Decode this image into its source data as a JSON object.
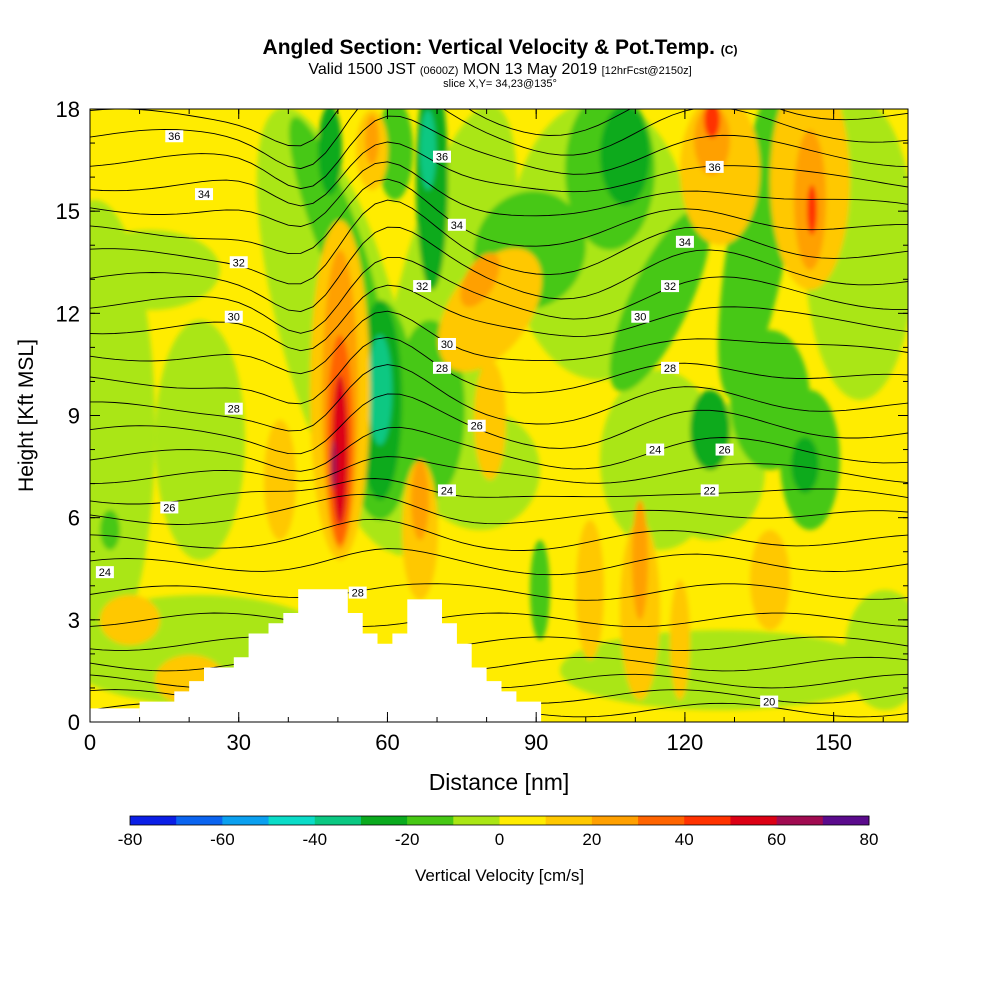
{
  "header": {
    "title": "Angled Section: Vertical Velocity & Pot.Temp.",
    "title_mark": "(C)",
    "valid_prefix": "Valid 1500 JST",
    "valid_utc": "(0600Z)",
    "valid_date": "MON 13 May 2019",
    "forecast": "[12hrFcst@2150z]",
    "slice": "slice X,Y= 34,23@135°"
  },
  "colorbar": {
    "label": "Vertical Velocity [cm/s]",
    "ticks": [
      "-80",
      "-60",
      "-40",
      "-20",
      "0",
      "20",
      "40",
      "60",
      "80"
    ],
    "colors": [
      "#0a1ee6",
      "#0a64f0",
      "#0aa0f0",
      "#0adcc8",
      "#0ac882",
      "#0aaa1e",
      "#46c814",
      "#aae614",
      "#ffec00",
      "#ffc800",
      "#ffa000",
      "#ff6400",
      "#ff3200",
      "#dc0014",
      "#a00a50",
      "#5a0a8c"
    ]
  },
  "chart_data": {
    "type": "heatmap",
    "xlabel": "Distance [nm]",
    "ylabel": "Height [Kft MSL]",
    "xlim": [
      0,
      165
    ],
    "ylim": [
      0,
      18
    ],
    "xticks": [
      "0",
      "30",
      "60",
      "90",
      "120",
      "150"
    ],
    "yticks": [
      "0",
      "3",
      "6",
      "9",
      "12",
      "15",
      "18"
    ],
    "color_variable": "Vertical Velocity [cm/s]",
    "color_range": [
      -80,
      80
    ],
    "updraft_cores": [
      {
        "x": 50,
        "y": 8,
        "value": 60
      },
      {
        "x": 125,
        "y": 17.5,
        "value": 40
      },
      {
        "x": 146,
        "y": 16,
        "value": 40
      },
      {
        "x": 69,
        "y": 6,
        "value": 20
      },
      {
        "x": 82,
        "y": 13,
        "value": 20
      },
      {
        "x": 110,
        "y": 5,
        "value": 20
      }
    ],
    "downdraft_cores": [
      {
        "x": 58,
        "y": 9.5,
        "value": -40
      },
      {
        "x": 69,
        "y": 16.5,
        "value": -40
      },
      {
        "x": 125,
        "y": 8.5,
        "value": -20
      },
      {
        "x": 144,
        "y": 7.5,
        "value": -20
      }
    ],
    "contour_variable": "Pot.Temp.",
    "contour_labels": [
      {
        "text": "36",
        "x": 17,
        "y": 17.2
      },
      {
        "text": "34",
        "x": 23,
        "y": 15.5
      },
      {
        "text": "32",
        "x": 30,
        "y": 13.5
      },
      {
        "text": "30",
        "x": 29,
        "y": 11.9
      },
      {
        "text": "28",
        "x": 29,
        "y": 9.2
      },
      {
        "text": "26",
        "x": 16,
        "y": 6.3
      },
      {
        "text": "24",
        "x": 3,
        "y": 4.4
      },
      {
        "text": "36",
        "x": 71,
        "y": 16.6
      },
      {
        "text": "34",
        "x": 74,
        "y": 14.6
      },
      {
        "text": "32",
        "x": 67,
        "y": 12.8
      },
      {
        "text": "30",
        "x": 72,
        "y": 11.1
      },
      {
        "text": "28",
        "x": 71,
        "y": 10.4
      },
      {
        "text": "26",
        "x": 78,
        "y": 8.7
      },
      {
        "text": "24",
        "x": 72,
        "y": 6.8
      },
      {
        "text": "28",
        "x": 54,
        "y": 3.8
      },
      {
        "text": "36",
        "x": 126,
        "y": 16.3
      },
      {
        "text": "34",
        "x": 120,
        "y": 14.1
      },
      {
        "text": "32",
        "x": 117,
        "y": 12.8
      },
      {
        "text": "30",
        "x": 111,
        "y": 11.9
      },
      {
        "text": "28",
        "x": 117,
        "y": 10.4
      },
      {
        "text": "24",
        "x": 114,
        "y": 8.0
      },
      {
        "text": "26",
        "x": 128,
        "y": 8.0
      },
      {
        "text": "22",
        "x": 125,
        "y": 6.8
      },
      {
        "text": "20",
        "x": 137,
        "y": 0.6
      }
    ],
    "terrain": [
      [
        0,
        0
      ],
      [
        10,
        0
      ],
      [
        10,
        0.6
      ],
      [
        17,
        0.6
      ],
      [
        17,
        0.9
      ],
      [
        20,
        0.9
      ],
      [
        20,
        1.2
      ],
      [
        23,
        1.2
      ],
      [
        23,
        1.6
      ],
      [
        29,
        1.6
      ],
      [
        29,
        1.9
      ],
      [
        32,
        1.9
      ],
      [
        32,
        2.6
      ],
      [
        36,
        2.6
      ],
      [
        36,
        2.9
      ],
      [
        39,
        2.9
      ],
      [
        39,
        3.2
      ],
      [
        42,
        3.2
      ],
      [
        42,
        3.9
      ],
      [
        52,
        3.9
      ],
      [
        52,
        3.2
      ],
      [
        55,
        3.2
      ],
      [
        55,
        2.6
      ],
      [
        58,
        2.6
      ],
      [
        58,
        2.3
      ],
      [
        61,
        2.3
      ],
      [
        61,
        2.6
      ],
      [
        64,
        2.6
      ],
      [
        64,
        3.6
      ],
      [
        71,
        3.6
      ],
      [
        71,
        2.9
      ],
      [
        74,
        2.9
      ],
      [
        74,
        2.3
      ],
      [
        77,
        2.3
      ],
      [
        77,
        1.6
      ],
      [
        80,
        1.6
      ],
      [
        80,
        1.2
      ],
      [
        83,
        1.2
      ],
      [
        83,
        0.9
      ],
      [
        86,
        0.9
      ],
      [
        86,
        0.6
      ],
      [
        91,
        0.6
      ],
      [
        91,
        0
      ],
      [
        165,
        0
      ]
    ]
  }
}
